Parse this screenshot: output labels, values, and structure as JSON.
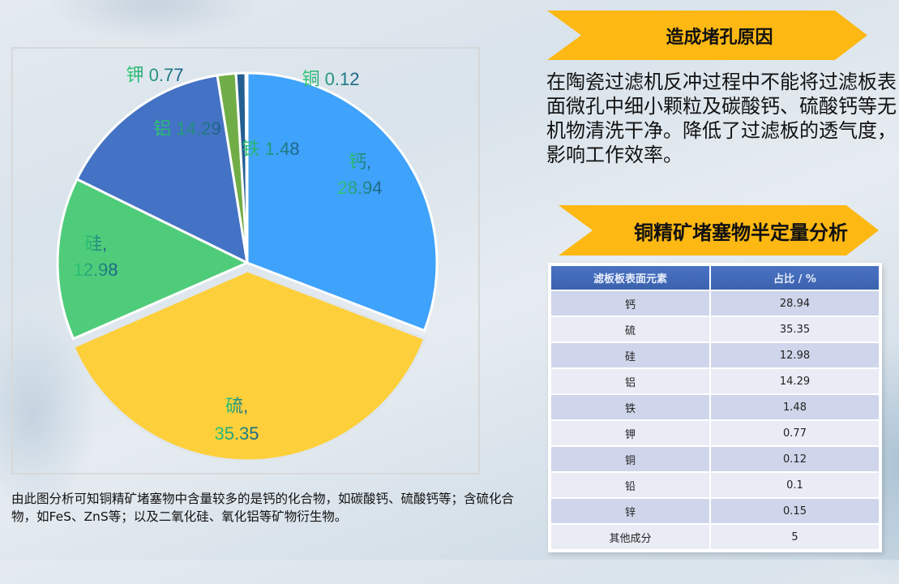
{
  "chart_data": {
    "type": "pie",
    "title": "",
    "start_angle_deg": 0,
    "direction": "clockwise",
    "exploded": [
      "硫"
    ],
    "slices": [
      {
        "label": "钙",
        "value": 28.94,
        "color": "#3fa2fb",
        "display": "钙,\n28.94"
      },
      {
        "label": "硫",
        "value": 35.35,
        "color": "#fdd03b",
        "display": "硫,\n35.35"
      },
      {
        "label": "硅",
        "value": 12.98,
        "color": "#4fcc7a",
        "display": "硅,\n12.98"
      },
      {
        "label": "铝",
        "value": 14.29,
        "color": "#4472c4",
        "display": "铝 14.29"
      },
      {
        "label": "铁",
        "value": 1.48,
        "color": "#70ad47",
        "display": "铁 1.48"
      },
      {
        "label": "钾",
        "value": 0.77,
        "color": "#255e91",
        "display": "钾 0.77"
      },
      {
        "label": "铜",
        "value": 0.12,
        "color": "#2e4a7a",
        "display": "铜 0.12"
      }
    ],
    "label_gradient": [
      "#2ecc71",
      "#1b5e8a"
    ]
  },
  "caption": "由此图分析可知铜精矿堵塞物中含量较多的是钙的化合物，如碳酸钙、硫酸钙等；含硫化合物，如FeS、ZnS等；以及二氧化硅、氧化铝等矿物衍生物。",
  "reason": {
    "title": "造成堵孔原因",
    "text": "在陶瓷过滤机反冲过程中不能将过滤板表面微孔中细小颗粒及碳酸钙、硫酸钙等无机物清洗干净。降低了过滤板的透气度，影响工作效率。"
  },
  "analysis": {
    "title": "铜精矿堵塞物半定量分析",
    "headers": [
      "滤板板表面元素",
      "占比 / %"
    ],
    "rows": [
      [
        "钙",
        "28.94"
      ],
      [
        "硫",
        "35.35"
      ],
      [
        "硅",
        "12.98"
      ],
      [
        "铝",
        "14.29"
      ],
      [
        "铁",
        "1.48"
      ],
      [
        "钾",
        "0.77"
      ],
      [
        "铜",
        "0.12"
      ],
      [
        "铅",
        "0.1"
      ],
      [
        "锌",
        "0.15"
      ],
      [
        "其他成分",
        "5"
      ]
    ]
  },
  "colors": {
    "banner": "#fdb813",
    "table_header": "#4169b8",
    "row_odd": "#cfd5ea",
    "row_even": "#e9ebf5"
  }
}
